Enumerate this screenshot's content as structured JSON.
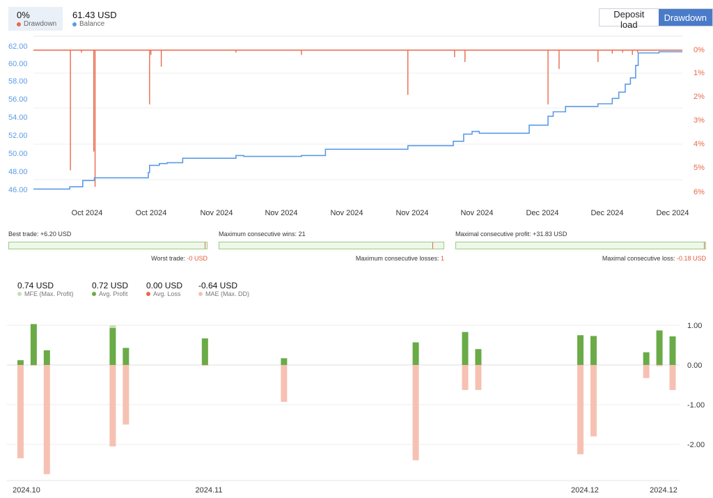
{
  "header": {
    "drawdown_value": "0%",
    "drawdown_label": "Drawdown",
    "balance_value": "61.43 USD",
    "balance_label": "Balance",
    "deposit_load_button": "Deposit load",
    "drawdown_button": "Drawdown"
  },
  "colors": {
    "balance": "#5b9be6",
    "drawdown": "#e8694a",
    "profit": "#6aab47",
    "mfe": "#c5dfb8",
    "mae": "#f6c1b3"
  },
  "chart_data": [
    {
      "type": "line",
      "x_tick_labels": [
        "Oct 2024",
        "Oct 2024",
        "Nov 2024",
        "Nov 2024",
        "Nov 2024",
        "Nov 2024",
        "Nov 2024",
        "Dec 2024",
        "Dec 2024",
        "Dec 2024"
      ],
      "y_left_ticks": [
        "62.00",
        "60.00",
        "58.00",
        "56.00",
        "54.00",
        "52.00",
        "50.00",
        "48.00",
        "46.00"
      ],
      "y_right_ticks": [
        "0%",
        "1%",
        "2%",
        "3%",
        "4%",
        "5%",
        "6%"
      ],
      "ylim_left": [
        45.4,
        62.3
      ],
      "ylim_right": [
        0,
        6
      ],
      "x_range": [
        0,
        100
      ],
      "series": [
        {
          "name": "Balance",
          "points": [
            [
              0,
              46.05
            ],
            [
              5.6,
              46.05
            ],
            [
              5.6,
              46.3
            ],
            [
              7.6,
              46.3
            ],
            [
              7.6,
              47.0
            ],
            [
              9.4,
              47.0
            ],
            [
              9.4,
              47.3
            ],
            [
              17.7,
              47.3
            ],
            [
              17.7,
              47.9
            ],
            [
              17.9,
              47.9
            ],
            [
              17.9,
              48.7
            ],
            [
              19.4,
              48.7
            ],
            [
              19.4,
              48.9
            ],
            [
              20.6,
              48.9
            ],
            [
              20.6,
              49.0
            ],
            [
              23.0,
              49.0
            ],
            [
              23.0,
              49.5
            ],
            [
              31.2,
              49.5
            ],
            [
              31.2,
              49.8
            ],
            [
              32.4,
              49.8
            ],
            [
              32.4,
              49.7
            ],
            [
              41.3,
              49.7
            ],
            [
              41.3,
              49.8
            ],
            [
              45.0,
              49.8
            ],
            [
              45.0,
              50.5
            ],
            [
              57.7,
              50.5
            ],
            [
              57.7,
              50.9
            ],
            [
              64.7,
              50.9
            ],
            [
              64.7,
              51.4
            ],
            [
              66.3,
              51.4
            ],
            [
              66.3,
              52.2
            ],
            [
              67.6,
              52.2
            ],
            [
              67.6,
              52.5
            ],
            [
              68.7,
              52.5
            ],
            [
              68.7,
              52.3
            ],
            [
              76.4,
              52.3
            ],
            [
              76.4,
              53.2
            ],
            [
              79.3,
              53.2
            ],
            [
              79.3,
              54.2
            ],
            [
              80.1,
              54.2
            ],
            [
              80.1,
              54.7
            ],
            [
              82.0,
              54.7
            ],
            [
              82.0,
              55.3
            ],
            [
              87.0,
              55.3
            ],
            [
              87.0,
              55.6
            ],
            [
              89.2,
              55.6
            ],
            [
              89.2,
              56.2
            ],
            [
              90.2,
              56.2
            ],
            [
              90.2,
              56.9
            ],
            [
              91.2,
              56.9
            ],
            [
              91.2,
              57.8
            ],
            [
              92.0,
              57.8
            ],
            [
              92.0,
              58.5
            ],
            [
              92.8,
              58.5
            ],
            [
              92.8,
              59.9
            ],
            [
              93.2,
              59.9
            ],
            [
              93.2,
              61.3
            ],
            [
              96.4,
              61.3
            ],
            [
              96.4,
              61.43
            ],
            [
              100,
              61.43
            ]
          ]
        },
        {
          "name": "Drawdown",
          "spikes": [
            [
              5.7,
              5.1
            ],
            [
              7.4,
              0.1
            ],
            [
              9.3,
              4.3
            ],
            [
              9.5,
              5.8
            ],
            [
              17.9,
              2.3
            ],
            [
              18.1,
              0.2
            ],
            [
              19.7,
              0.7
            ],
            [
              31.2,
              0.1
            ],
            [
              41.3,
              0.2
            ],
            [
              57.7,
              1.9
            ],
            [
              64.9,
              0.3
            ],
            [
              66.5,
              0.5
            ],
            [
              79.3,
              2.3
            ],
            [
              81.0,
              0.8
            ],
            [
              87.0,
              0.5
            ],
            [
              89.2,
              0.15
            ],
            [
              90.8,
              0.1
            ],
            [
              92.3,
              0.2
            ],
            [
              93.1,
              0.1
            ]
          ]
        }
      ]
    },
    {
      "type": "bar",
      "x_tick_labels": [
        "2024.10",
        "2024.11",
        "2024.12",
        "2024.12"
      ],
      "y_ticks": [
        "1.00",
        "0.00",
        "-1.00",
        "-2.00"
      ],
      "ylim": [
        -2.85,
        1.1
      ],
      "legend": [
        {
          "value": "0.74 USD",
          "label": "MFE (Max. Profit)"
        },
        {
          "value": "0.72 USD",
          "label": "Avg. Profit"
        },
        {
          "value": "0.00 USD",
          "label": "Avg. Loss"
        },
        {
          "value": "-0.64 USD",
          "label": "MAE (Max. DD)"
        }
      ],
      "trades": [
        {
          "x": 1,
          "profit": 0.12,
          "mae": -2.35
        },
        {
          "x": 3,
          "profit": 1.03,
          "mfe": 1.03,
          "mae": -0.02
        },
        {
          "x": 5,
          "profit": 0.37,
          "mae": -2.75
        },
        {
          "x": 15,
          "profit": 0.93,
          "mfe": 1.0,
          "mae": -2.05
        },
        {
          "x": 17,
          "profit": 0.43,
          "mae": -1.5
        },
        {
          "x": 29,
          "profit": 0.67,
          "mae": -0.02
        },
        {
          "x": 41,
          "profit": 0.17,
          "mae": -0.93
        },
        {
          "x": 61,
          "profit": 0.57,
          "mae": -2.4
        },
        {
          "x": 68.5,
          "profit": 0.83,
          "mae": -0.63
        },
        {
          "x": 70.5,
          "profit": 0.4,
          "mae": -0.63
        },
        {
          "x": 86,
          "profit": 0.75,
          "mae": -2.25
        },
        {
          "x": 88,
          "profit": 0.73,
          "mae": -1.8
        },
        {
          "x": 96,
          "profit": 0.32,
          "mae": -0.33
        },
        {
          "x": 98,
          "profit": 0.87,
          "mae": -0.03
        },
        {
          "x": 100,
          "profit": 0.72,
          "mae": -0.63
        }
      ]
    }
  ],
  "stats": {
    "best_trade_label": "Best trade:",
    "best_trade_value": "+6.20 USD",
    "best_trade_fraction": 0.99,
    "worst_trade_label": "Worst trade:",
    "worst_trade_value": "-0 USD",
    "max_wins_label": "Maximum consecutive wins:",
    "max_wins_value": "21",
    "max_wins_fraction": 0.95,
    "max_losses_label": "Maximum consecutive losses:",
    "max_losses_value": "1",
    "max_profit_label": "Maximal consecutive profit:",
    "max_profit_value": "+31.83 USD",
    "max_profit_fraction": 0.994,
    "max_loss_label": "Maximal consecutive loss:",
    "max_loss_value": "-0.18 USD"
  }
}
